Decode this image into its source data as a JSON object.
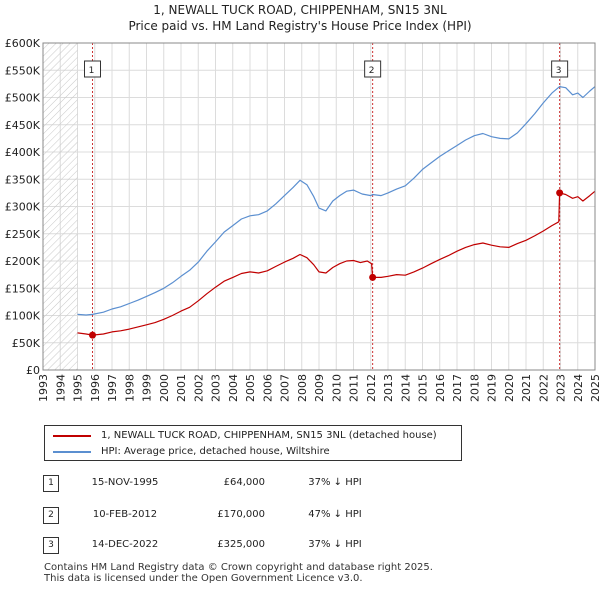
{
  "title": "1, NEWALL TUCK ROAD, CHIPPENHAM, SN15 3NL",
  "subtitle": "Price paid vs. HM Land Registry's House Price Index (HPI)",
  "colors": {
    "price": "#c00000",
    "hpi": "#5b8fd0",
    "grid": "#dcdcdc",
    "marker_line": "#cc3333"
  },
  "chart_data": {
    "type": "line",
    "xlim": [
      1993,
      2025
    ],
    "ylim": [
      0,
      600000
    ],
    "yticks": [
      {
        "v": 0,
        "label": "£0"
      },
      {
        "v": 50000,
        "label": "£50K"
      },
      {
        "v": 100000,
        "label": "£100K"
      },
      {
        "v": 150000,
        "label": "£150K"
      },
      {
        "v": 200000,
        "label": "£200K"
      },
      {
        "v": 250000,
        "label": "£250K"
      },
      {
        "v": 300000,
        "label": "£300K"
      },
      {
        "v": 350000,
        "label": "£350K"
      },
      {
        "v": 400000,
        "label": "£400K"
      },
      {
        "v": 450000,
        "label": "£450K"
      },
      {
        "v": 500000,
        "label": "£500K"
      },
      {
        "v": 550000,
        "label": "£550K"
      },
      {
        "v": 600000,
        "label": "£600K"
      }
    ],
    "xticks": [
      "1993",
      "1994",
      "1995",
      "1996",
      "1997",
      "1998",
      "1999",
      "2000",
      "2001",
      "2002",
      "2003",
      "2004",
      "2005",
      "2006",
      "2007",
      "2008",
      "2009",
      "2010",
      "2011",
      "2012",
      "2013",
      "2014",
      "2015",
      "2016",
      "2017",
      "2018",
      "2019",
      "2020",
      "2021",
      "2022",
      "2023",
      "2024",
      "2025"
    ],
    "series": [
      {
        "name": "1, NEWALL TUCK ROAD, CHIPPENHAM, SN15 3NL (detached house)",
        "color": "#c00000",
        "points": [
          [
            1995.0,
            68000
          ],
          [
            1995.5,
            66000
          ],
          [
            1995.87,
            64000
          ],
          [
            1996.5,
            66000
          ],
          [
            1997.0,
            70000
          ],
          [
            1997.5,
            72000
          ],
          [
            1998.0,
            75000
          ],
          [
            1998.5,
            79000
          ],
          [
            1999.0,
            83000
          ],
          [
            1999.5,
            87000
          ],
          [
            2000.0,
            93000
          ],
          [
            2000.5,
            100000
          ],
          [
            2001.0,
            108000
          ],
          [
            2001.5,
            115000
          ],
          [
            2002.0,
            127000
          ],
          [
            2002.5,
            140000
          ],
          [
            2003.0,
            152000
          ],
          [
            2003.5,
            163000
          ],
          [
            2004.0,
            170000
          ],
          [
            2004.5,
            177000
          ],
          [
            2005.0,
            180000
          ],
          [
            2005.5,
            178000
          ],
          [
            2006.0,
            182000
          ],
          [
            2006.5,
            190000
          ],
          [
            2007.0,
            198000
          ],
          [
            2007.5,
            205000
          ],
          [
            2007.9,
            212000
          ],
          [
            2008.3,
            206000
          ],
          [
            2008.7,
            193000
          ],
          [
            2009.0,
            180000
          ],
          [
            2009.4,
            178000
          ],
          [
            2009.8,
            188000
          ],
          [
            2010.2,
            195000
          ],
          [
            2010.6,
            200000
          ],
          [
            2011.0,
            201000
          ],
          [
            2011.4,
            197000
          ],
          [
            2011.8,
            200000
          ],
          [
            2012.05,
            195000
          ],
          [
            2012.11,
            170000
          ],
          [
            2012.6,
            170000
          ],
          [
            2013.0,
            172000
          ],
          [
            2013.5,
            175000
          ],
          [
            2014.0,
            174000
          ],
          [
            2014.5,
            180000
          ],
          [
            2015.0,
            187000
          ],
          [
            2015.5,
            195000
          ],
          [
            2016.0,
            203000
          ],
          [
            2016.5,
            210000
          ],
          [
            2017.0,
            218000
          ],
          [
            2017.5,
            225000
          ],
          [
            2018.0,
            230000
          ],
          [
            2018.5,
            233000
          ],
          [
            2019.0,
            229000
          ],
          [
            2019.5,
            226000
          ],
          [
            2020.0,
            225000
          ],
          [
            2020.5,
            232000
          ],
          [
            2021.0,
            238000
          ],
          [
            2021.5,
            246000
          ],
          [
            2022.0,
            255000
          ],
          [
            2022.5,
            265000
          ],
          [
            2022.9,
            272000
          ],
          [
            2022.95,
            325000
          ],
          [
            2023.3,
            322000
          ],
          [
            2023.7,
            315000
          ],
          [
            2024.0,
            318000
          ],
          [
            2024.3,
            310000
          ],
          [
            2024.7,
            320000
          ],
          [
            2025.0,
            328000
          ]
        ]
      },
      {
        "name": "HPI: Average price, detached house, Wiltshire",
        "color": "#5b8fd0",
        "points": [
          [
            1995.0,
            102000
          ],
          [
            1995.5,
            101000
          ],
          [
            1995.87,
            102000
          ],
          [
            1996.5,
            106000
          ],
          [
            1997.0,
            112000
          ],
          [
            1997.5,
            116000
          ],
          [
            1998.0,
            122000
          ],
          [
            1998.5,
            128000
          ],
          [
            1999.0,
            135000
          ],
          [
            1999.5,
            142000
          ],
          [
            2000.0,
            150000
          ],
          [
            2000.5,
            160000
          ],
          [
            2001.0,
            172000
          ],
          [
            2001.5,
            183000
          ],
          [
            2002.0,
            198000
          ],
          [
            2002.5,
            218000
          ],
          [
            2003.0,
            235000
          ],
          [
            2003.5,
            253000
          ],
          [
            2004.0,
            265000
          ],
          [
            2004.5,
            277000
          ],
          [
            2005.0,
            283000
          ],
          [
            2005.5,
            285000
          ],
          [
            2006.0,
            292000
          ],
          [
            2006.5,
            305000
          ],
          [
            2007.0,
            320000
          ],
          [
            2007.5,
            335000
          ],
          [
            2007.9,
            348000
          ],
          [
            2008.3,
            340000
          ],
          [
            2008.7,
            318000
          ],
          [
            2009.0,
            297000
          ],
          [
            2009.4,
            292000
          ],
          [
            2009.8,
            310000
          ],
          [
            2010.2,
            320000
          ],
          [
            2010.6,
            328000
          ],
          [
            2011.0,
            330000
          ],
          [
            2011.5,
            323000
          ],
          [
            2012.0,
            320000
          ],
          [
            2012.11,
            322000
          ],
          [
            2012.6,
            320000
          ],
          [
            2013.0,
            325000
          ],
          [
            2013.5,
            332000
          ],
          [
            2014.0,
            338000
          ],
          [
            2014.5,
            352000
          ],
          [
            2015.0,
            368000
          ],
          [
            2015.5,
            380000
          ],
          [
            2016.0,
            392000
          ],
          [
            2016.5,
            402000
          ],
          [
            2017.0,
            412000
          ],
          [
            2017.5,
            422000
          ],
          [
            2018.0,
            430000
          ],
          [
            2018.5,
            434000
          ],
          [
            2019.0,
            428000
          ],
          [
            2019.5,
            425000
          ],
          [
            2020.0,
            424000
          ],
          [
            2020.5,
            435000
          ],
          [
            2021.0,
            452000
          ],
          [
            2021.5,
            470000
          ],
          [
            2022.0,
            490000
          ],
          [
            2022.5,
            508000
          ],
          [
            2022.95,
            520000
          ],
          [
            2023.3,
            518000
          ],
          [
            2023.7,
            505000
          ],
          [
            2024.0,
            508000
          ],
          [
            2024.3,
            500000
          ],
          [
            2024.7,
            512000
          ],
          [
            2025.0,
            520000
          ]
        ]
      }
    ],
    "sales": [
      {
        "label": "1",
        "x": 1995.87,
        "price": 64000
      },
      {
        "label": "2",
        "x": 2012.11,
        "price": 170000
      },
      {
        "label": "3",
        "x": 2022.95,
        "price": 325000
      }
    ],
    "hatch_until": 1995.0
  },
  "legend": {
    "price_label": "1, NEWALL TUCK ROAD, CHIPPENHAM, SN15 3NL (detached house)",
    "hpi_label": "HPI: Average price, detached house, Wiltshire"
  },
  "transactions": [
    {
      "num": "1",
      "date": "15-NOV-1995",
      "price": "£64,000",
      "delta": "37% ↓ HPI"
    },
    {
      "num": "2",
      "date": "10-FEB-2012",
      "price": "£170,000",
      "delta": "47% ↓ HPI"
    },
    {
      "num": "3",
      "date": "14-DEC-2022",
      "price": "£325,000",
      "delta": "37% ↓ HPI"
    }
  ],
  "footer": {
    "line1": "Contains HM Land Registry data © Crown copyright and database right 2025.",
    "line2": "This data is licensed under the Open Government Licence v3.0."
  }
}
